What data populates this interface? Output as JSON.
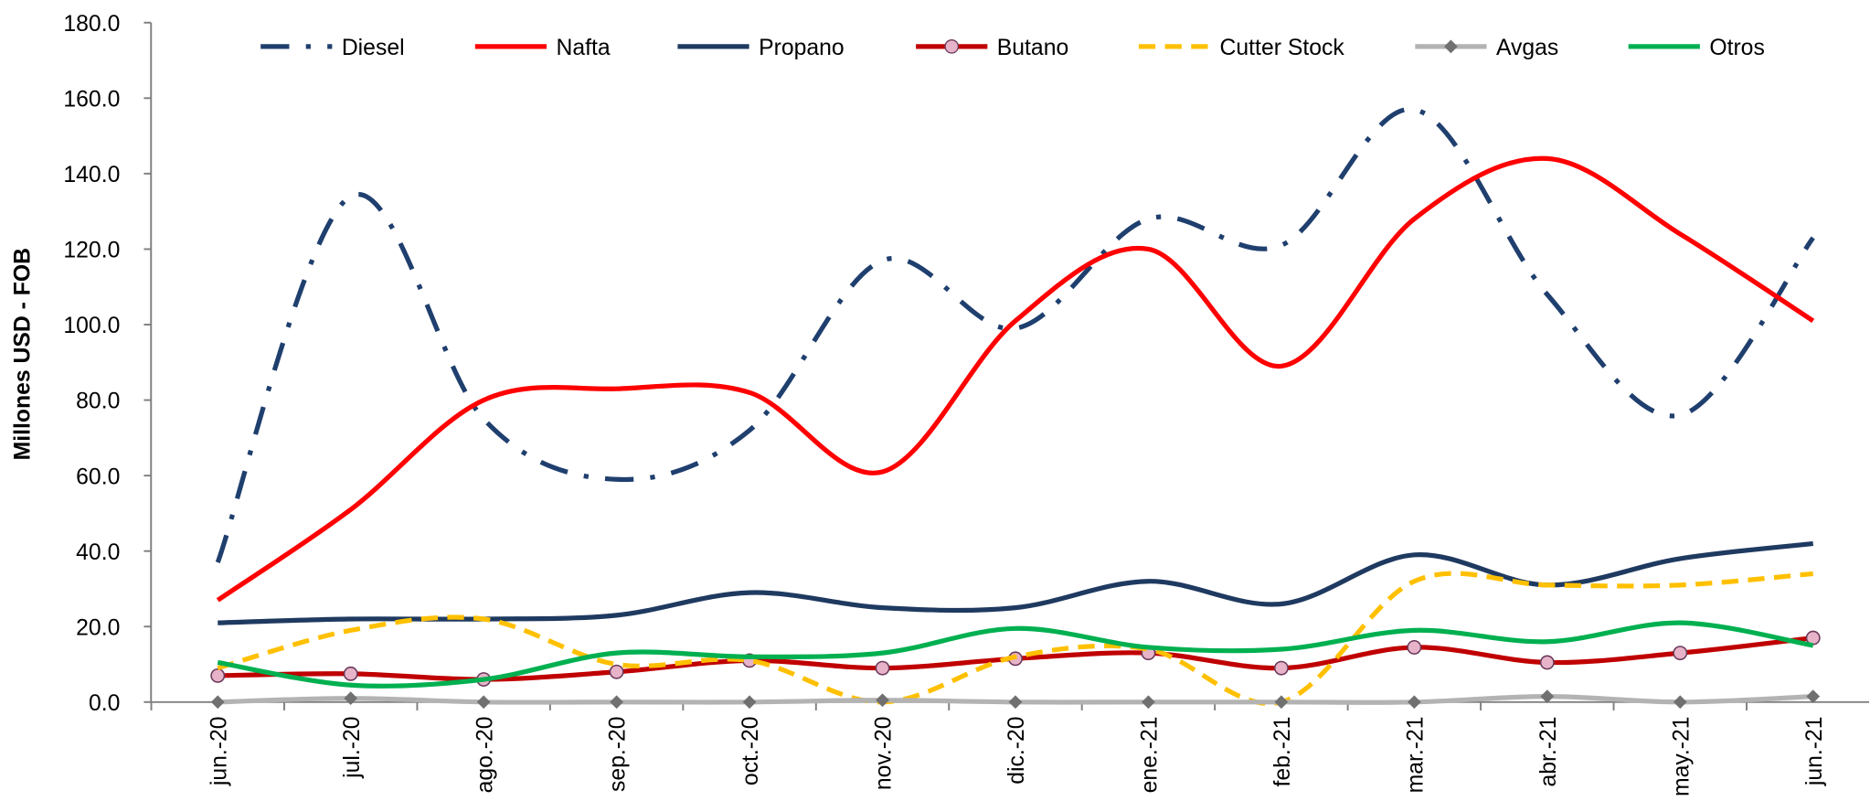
{
  "chart_data": {
    "type": "line",
    "y_label": "Millones USD - FOB",
    "categories": [
      "jun.-20",
      "jul.-20",
      "ago.-20",
      "sep.-20",
      "oct.-20",
      "nov.-20",
      "dic.-20",
      "ene.-21",
      "feb.-21",
      "mar.-21",
      "abr.-21",
      "may.-21",
      "jun.-21"
    ],
    "ylim": [
      0,
      180
    ],
    "yticks": [
      {
        "value": 0,
        "label": "0.0"
      },
      {
        "value": 20,
        "label": "20.0"
      },
      {
        "value": 40,
        "label": "40.0"
      },
      {
        "value": 60,
        "label": "60.0"
      },
      {
        "value": 80,
        "label": "80.0"
      },
      {
        "value": 100,
        "label": "100.0"
      },
      {
        "value": 120,
        "label": "120.0"
      },
      {
        "value": 140,
        "label": "140.0"
      },
      {
        "value": 160,
        "label": "160.0"
      },
      {
        "value": 180,
        "label": "180.0"
      }
    ],
    "legend": "top",
    "series": [
      {
        "name": "Diesel",
        "color": "#1f3f6e",
        "style": "dashdot",
        "values": [
          37,
          134,
          75,
          59,
          72,
          117,
          99,
          128,
          121,
          157,
          108,
          76,
          123
        ]
      },
      {
        "name": "Nafta",
        "color": "#ff0000",
        "style": "solid",
        "values": [
          27,
          51,
          80,
          83,
          82,
          61,
          101,
          120,
          89,
          128,
          144,
          124,
          101
        ]
      },
      {
        "name": "Propano",
        "color": "#1f3a60",
        "style": "solid",
        "values": [
          21,
          22,
          22,
          23,
          29,
          25,
          25,
          32,
          26,
          39,
          31,
          38,
          42
        ]
      },
      {
        "name": "Butano",
        "color": "#c00000",
        "style": "solid",
        "marker": "circle",
        "values": [
          7,
          7.5,
          6,
          8,
          11,
          9,
          11.5,
          13,
          9,
          14.5,
          10.5,
          13,
          17
        ]
      },
      {
        "name": "Cutter Stock",
        "color": "#ffc000",
        "style": "dashed",
        "values": [
          9,
          19,
          22,
          10,
          11,
          0,
          12,
          14,
          0,
          32,
          31,
          31,
          34
        ]
      },
      {
        "name": "Avgas",
        "color": "#b3b3b3",
        "style": "solid",
        "marker": "diamond",
        "values": [
          0,
          1,
          0,
          0,
          0,
          0.5,
          0,
          0,
          0,
          0,
          1.5,
          0,
          1.5
        ]
      },
      {
        "name": "Otros",
        "color": "#00b050",
        "style": "solid",
        "values": [
          10.5,
          4.5,
          6,
          13,
          12,
          13,
          19.5,
          14.5,
          14,
          19,
          16,
          21,
          15
        ]
      }
    ]
  }
}
